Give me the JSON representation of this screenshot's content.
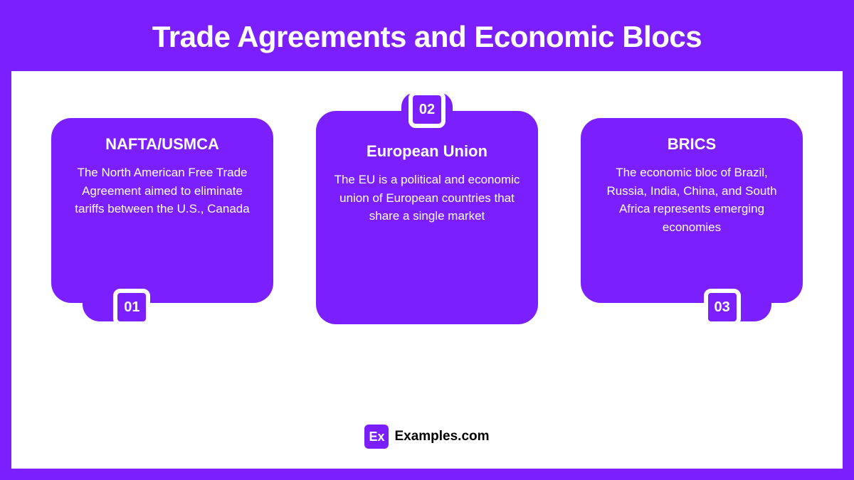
{
  "title": "Trade Agreements and Economic Blocs",
  "background_color": "#7c1fff",
  "content_background": "#ffffff",
  "card_color": "#7c1fff",
  "card_text_color": "#ffffff",
  "card_border_radius": 28,
  "badge_border_color": "#ffffff",
  "title_fontsize": 42,
  "card_title_fontsize": 22,
  "card_desc_fontsize": 17,
  "badge_fontsize": 20,
  "cards": [
    {
      "number": "01",
      "title": "NAFTA/USMCA",
      "description": "The North American Free Trade Agreement aimed to eliminate tariffs between the U.S., Canada",
      "badge_position": "bottom-left"
    },
    {
      "number": "02",
      "title": "European Union",
      "description": "The EU is a political and economic union of European countries that share a single market",
      "badge_position": "top-center"
    },
    {
      "number": "03",
      "title": "BRICS",
      "description": "The economic bloc of Brazil, Russia, India, China, and South Africa represents emerging economies",
      "badge_position": "bottom-right"
    }
  ],
  "footer": {
    "logo_abbr": "Ex",
    "logo_text": "Examples.com",
    "logo_bg": "#7c1fff",
    "logo_color": "#ffffff",
    "text_color": "#000000"
  }
}
